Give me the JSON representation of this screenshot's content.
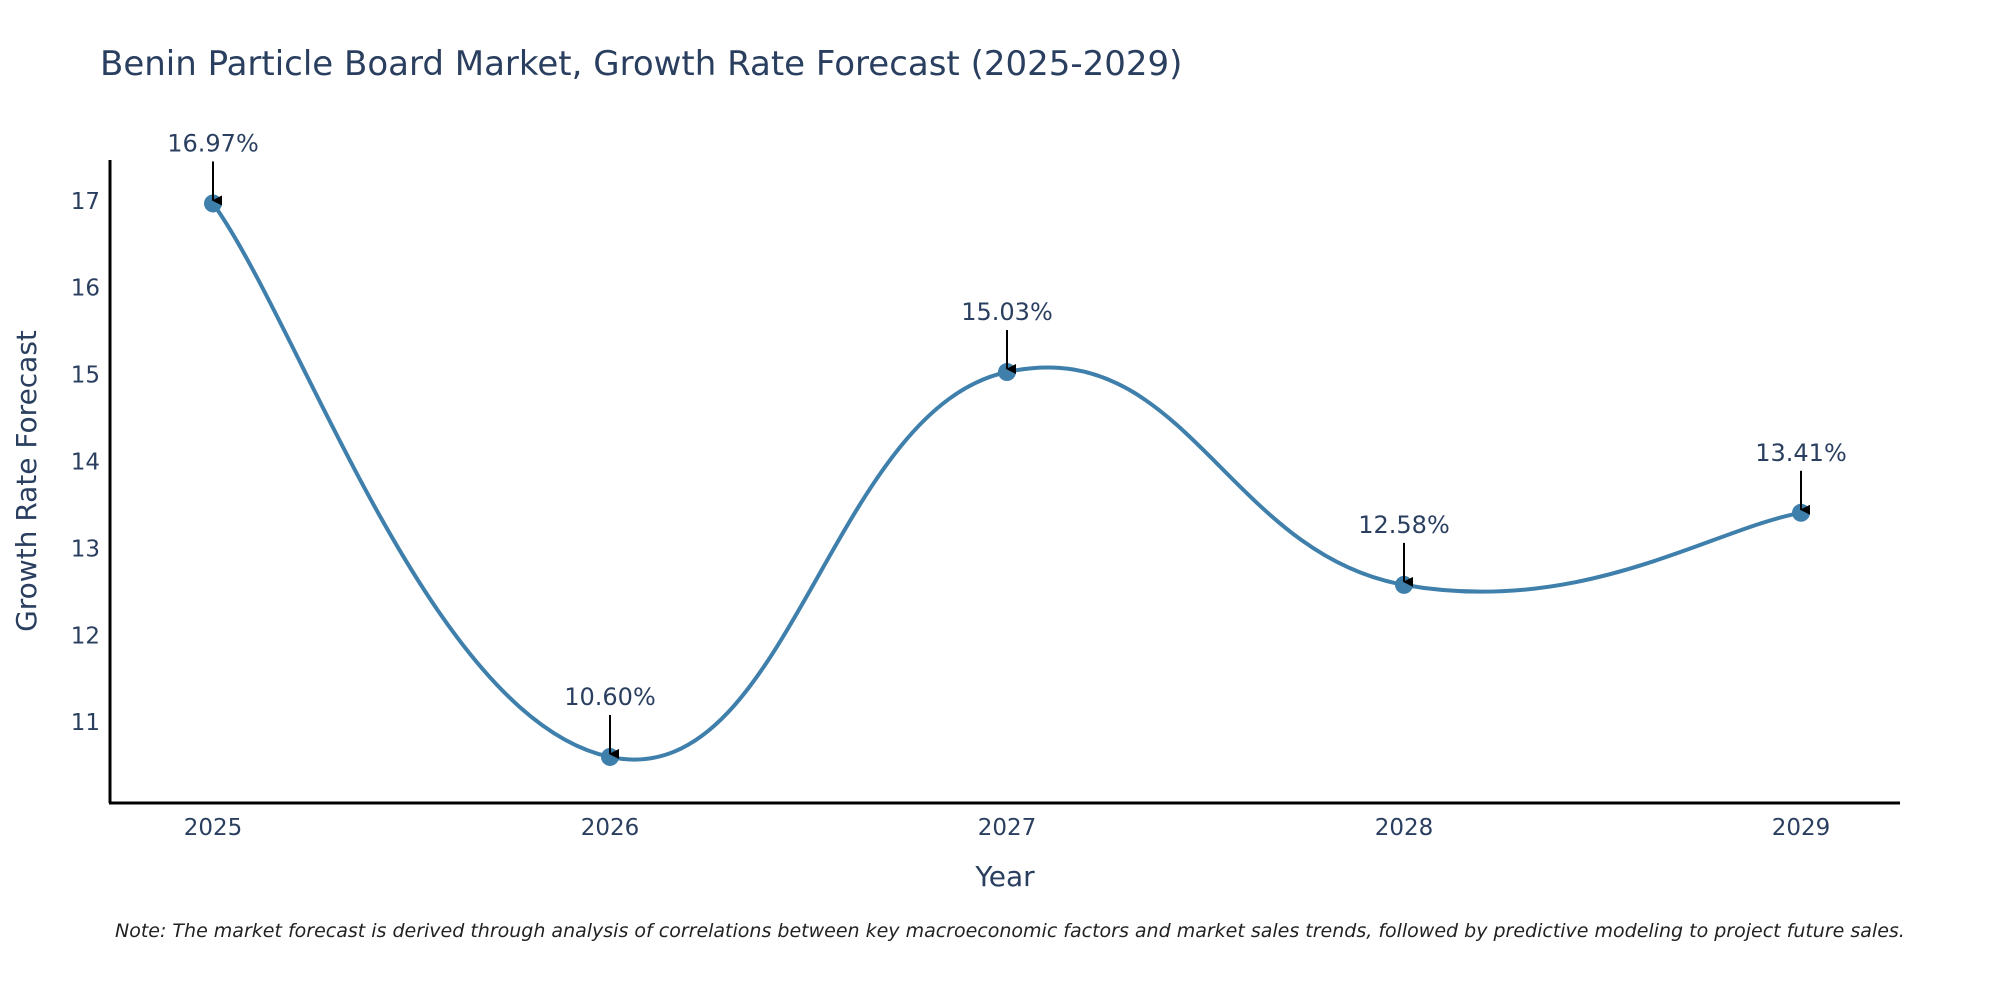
{
  "chart_data": {
    "type": "line",
    "title": "Benin Particle Board Market, Growth Rate Forecast (2025-2029)",
    "xlabel": "Year",
    "ylabel": "Growth Rate Forecast",
    "categories": [
      "2025",
      "2026",
      "2027",
      "2028",
      "2029"
    ],
    "values": [
      16.97,
      10.6,
      15.03,
      12.58,
      13.41
    ],
    "data_labels": [
      "16.97%",
      "10.60%",
      "15.03%",
      "12.58%",
      "13.41%"
    ],
    "yticks": [
      11,
      12,
      13,
      14,
      15,
      16,
      17
    ],
    "ylim": [
      10.07,
      17.47
    ],
    "grid": false,
    "line_color": "#3f7fab",
    "marker_color": "#3f7fab",
    "arrow_color": "#000000",
    "text_color": "#2a3f5f"
  },
  "note": "Note: The market forecast is derived through analysis of correlations between key macroeconomic factors and market sales trends, followed by predictive modeling to project future sales."
}
